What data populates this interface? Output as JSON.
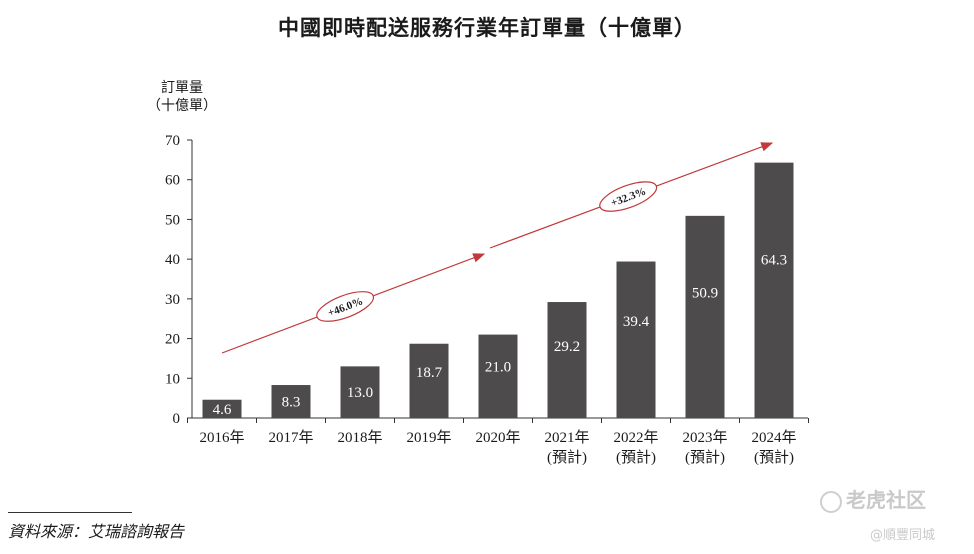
{
  "chart_data": {
    "type": "bar",
    "title": "中國即時配送服務行業年訂單量（十億單）",
    "ylabel_line1": "訂單量",
    "ylabel_line2": "（十億單）",
    "ylim": [
      0,
      70
    ],
    "yticks": [
      0,
      10,
      20,
      30,
      40,
      50,
      60,
      70
    ],
    "categories": [
      [
        "2016年"
      ],
      [
        "2017年"
      ],
      [
        "2018年"
      ],
      [
        "2019年"
      ],
      [
        "2020年"
      ],
      [
        "2021年",
        "(預計)"
      ],
      [
        "2022年",
        "(預計)"
      ],
      [
        "2023年",
        "(預計)"
      ],
      [
        "2024年",
        "(預計)"
      ]
    ],
    "values": [
      4.6,
      8.3,
      13.0,
      18.7,
      21.0,
      29.2,
      39.4,
      50.9,
      64.3
    ],
    "value_labels": [
      "4.6",
      "8.3",
      "13.0",
      "18.7",
      "21.0",
      "29.2",
      "39.4",
      "50.9",
      "64.3"
    ],
    "bar_color": "#4d4b4c",
    "growth_annotations": [
      {
        "label": "+46.0%",
        "from_category": 0,
        "to_category": 4,
        "color": "#c0393b"
      },
      {
        "label": "+32.3%",
        "from_category": 4,
        "to_category": 8,
        "color": "#c0393b"
      }
    ]
  },
  "source": "資料來源：艾瑞諮詢報告",
  "watermark": {
    "main": "老虎社区",
    "sub": "@順豐同城"
  }
}
